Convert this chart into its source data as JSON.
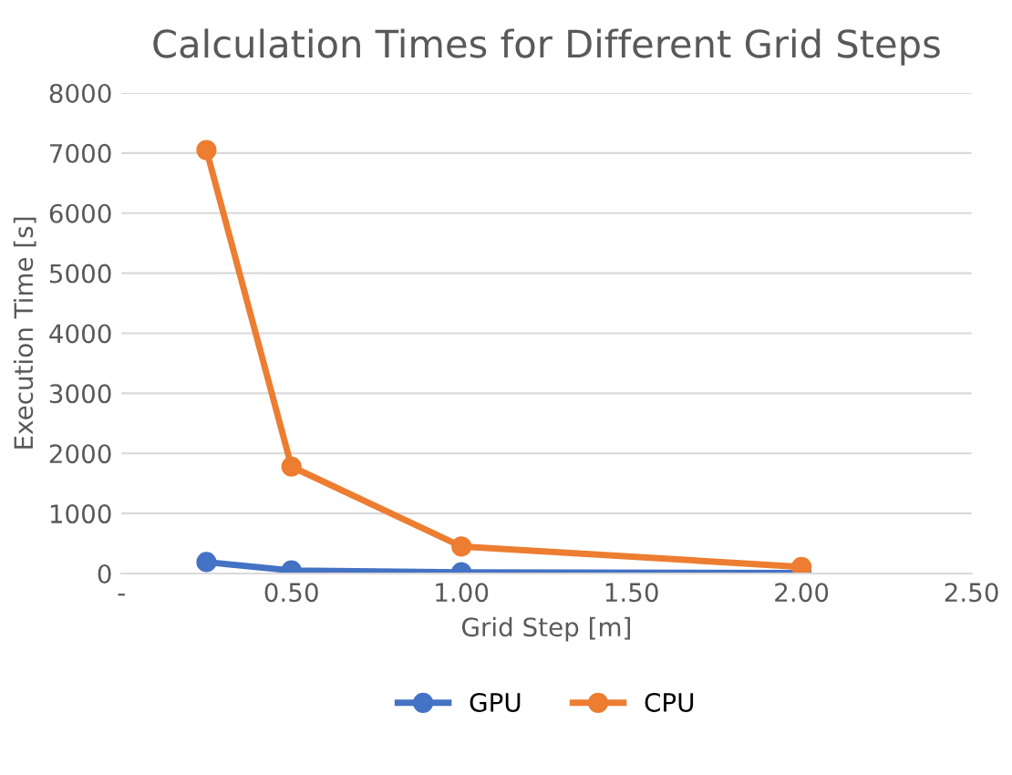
{
  "chart_data": {
    "type": "line",
    "title": "Calculation Times for Different Grid Steps",
    "xlabel": "Grid Step [m]",
    "ylabel": "Execution Time [s]",
    "x": [
      0.25,
      0.5,
      1.0,
      2.0
    ],
    "series": [
      {
        "name": "GPU",
        "color": "#4472c4",
        "values": [
          190,
          50,
          20,
          10
        ]
      },
      {
        "name": "CPU",
        "color": "#ed7d31",
        "values": [
          7050,
          1780,
          450,
          110
        ]
      }
    ],
    "xlim": [
      0,
      2.5
    ],
    "xticks": [
      {
        "value": 0,
        "label": "-"
      },
      {
        "value": 0.5,
        "label": "0.50"
      },
      {
        "value": 1.0,
        "label": "1.00"
      },
      {
        "value": 1.5,
        "label": "1.50"
      },
      {
        "value": 2.0,
        "label": "2.00"
      },
      {
        "value": 2.5,
        "label": "2.50"
      }
    ],
    "ylim": [
      0,
      8000
    ],
    "yticks": [
      0,
      1000,
      2000,
      3000,
      4000,
      5000,
      6000,
      7000,
      8000
    ],
    "grid": "y",
    "legend": "bottom",
    "marker": "circle",
    "line_style": "solid"
  }
}
